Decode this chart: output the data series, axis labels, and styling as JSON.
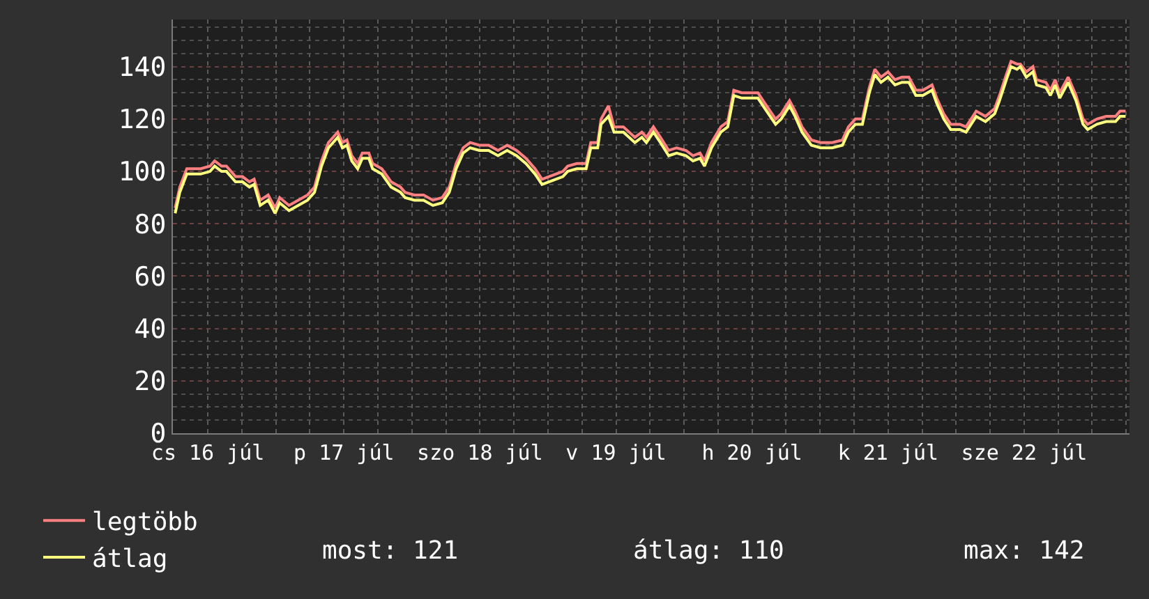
{
  "chart_data": {
    "type": "line",
    "x": [
      "--07-16T06:14",
      "--07-16T07:03",
      "--07-16T08:17",
      "--07-16T09:31",
      "--07-16T10:44",
      "--07-16T12:23",
      "--07-16T13:12",
      "--07-16T14:25",
      "--07-16T15:16",
      "--07-16T16:53",
      "--07-16T18:07",
      "--07-16T19:20",
      "--07-16T20:10",
      "--07-16T21:14",
      "--07-16T22:38",
      "--07-16T23:52",
      "--07-17T00:40",
      "--07-17T02:19",
      "--07-17T03:56",
      "--07-17T05:35",
      "--07-17T06:49",
      "--07-17T08:03",
      "--07-17T09:16",
      "--07-17T10:55",
      "--07-17T11:44",
      "--07-17T12:32",
      "--07-17T13:23",
      "--07-17T14:26",
      "--07-17T15:15",
      "--07-17T16:24",
      "--07-17T17:04",
      "--07-17T18:41",
      "--07-17T20:20",
      "--07-17T21:59",
      "--07-17T22:47",
      "--07-18T00:26",
      "--07-18T02:03",
      "--07-18T03:42",
      "--07-18T05:21",
      "--07-18T06:35",
      "--07-18T07:48",
      "--07-18T09:02",
      "--07-18T10:16",
      "--07-18T11:53",
      "--07-18T13:32",
      "--07-18T15:11",
      "--07-18T16:48",
      "--07-18T18:27",
      "--07-18T20:06",
      "--07-18T21:43",
      "--07-18T22:57",
      "--07-19T00:10",
      "--07-19T02:38",
      "--07-19T03:28",
      "--07-19T05:05",
      "--07-19T06:44",
      "--07-19T07:33",
      "--07-19T08:46",
      "--07-19T09:22",
      "--07-19T10:40",
      "--07-19T11:39",
      "--07-19T13:18",
      "--07-19T15:20",
      "--07-19T16:34",
      "--07-19T17:22",
      "--07-19T18:36",
      "--07-19T19:50",
      "--07-19T21:18",
      "--07-19T22:42",
      "--07-20T00:21",
      "--07-20T01:35",
      "--07-20T02:49",
      "--07-20T03:37",
      "--07-20T04:51",
      "--07-20T06:30",
      "--07-20T07:43",
      "--07-20T08:47",
      "--07-20T10:11",
      "--07-20T11:48",
      "--07-20T13:02",
      "--07-20T14:16",
      "--07-20T16:09",
      "--07-20T17:08",
      "--07-20T18:37",
      "--07-20T19:36",
      "--07-20T20:49",
      "--07-20T22:28",
      "--07-21T00:05",
      "--07-21T02:09",
      "--07-21T03:57",
      "--07-21T05:00",
      "--07-21T06:14",
      "--07-21T07:28",
      "--07-21T08:41",
      "--07-21T09:40",
      "--07-21T10:45",
      "--07-21T11:59",
      "--07-21T13:13",
      "--07-21T14:27",
      "--07-21T15:40",
      "--07-21T16:54",
      "--07-21T18:08",
      "--07-21T19:45",
      "--07-21T20:35",
      "--07-21T21:49",
      "--07-21T23:03",
      "--07-22T00:40",
      "--07-22T01:45",
      "--07-22T03:33",
      "--07-22T05:11",
      "--07-22T06:48",
      "--07-22T07:39",
      "--07-22T08:52",
      "--07-22T09:41",
      "--07-22T10:44",
      "--07-22T11:20",
      "--07-22T12:23",
      "--07-22T13:33",
      "--07-22T14:11",
      "--07-22T15:50",
      "--07-22T16:38",
      "--07-22T17:28",
      "--07-22T18:17",
      "--07-22T19:46",
      "--07-22T21:09",
      "--07-22T22:23",
      "--07-22T23:12",
      "--07-23T00:51",
      "--07-23T02:28",
      "--07-23T04:07",
      "--07-23T04:55",
      "--07-23T05:54"
    ],
    "series": [
      {
        "name": "legtöbb",
        "color": "#ff8080",
        "values": [
          86,
          94,
          101,
          101,
          101,
          102,
          104,
          102,
          102,
          98,
          98,
          96,
          97,
          89,
          91,
          86,
          90,
          87,
          89,
          91,
          94,
          104,
          111,
          115,
          111,
          112,
          106,
          103,
          107,
          107,
          103,
          101,
          96,
          94,
          92,
          91,
          91,
          89,
          90,
          94,
          103,
          109,
          111,
          110,
          110,
          108,
          110,
          108,
          105,
          101,
          97,
          98,
          100,
          102,
          103,
          103,
          111,
          111,
          120,
          125,
          117,
          117,
          113,
          115,
          113,
          117,
          113,
          108,
          109,
          108,
          106,
          107,
          104,
          111,
          117,
          119,
          131,
          130,
          130,
          130,
          126,
          120,
          122,
          127,
          123,
          117,
          112,
          111,
          111,
          112,
          117,
          120,
          120,
          132,
          139,
          136,
          138,
          135,
          136,
          136,
          131,
          131,
          133,
          128,
          122,
          118,
          118,
          117,
          123,
          121,
          124,
          129,
          137,
          142,
          141,
          141,
          138,
          140,
          135,
          134,
          131,
          135,
          130,
          136,
          129,
          120,
          118,
          120,
          121,
          121,
          123,
          123
        ]
      },
      {
        "name": "átlag",
        "color": "#ffff80",
        "values": [
          84,
          92,
          99,
          99,
          99,
          100,
          102,
          100,
          100,
          96,
          96,
          94,
          95,
          87,
          89,
          84,
          88,
          85,
          87,
          89,
          92,
          102,
          109,
          113,
          109,
          110,
          104,
          101,
          105,
          105,
          101,
          99,
          94,
          92,
          90,
          89,
          89,
          87,
          88,
          92,
          101,
          107,
          109,
          108,
          108,
          106,
          108,
          106,
          103,
          99,
          95,
          96,
          98,
          100,
          101,
          101,
          109,
          109,
          118,
          121,
          115,
          115,
          111,
          113,
          111,
          115,
          111,
          106,
          107,
          106,
          104,
          105,
          102,
          109,
          115,
          117,
          129,
          128,
          128,
          128,
          124,
          118,
          120,
          125,
          121,
          115,
          110,
          109,
          109,
          110,
          115,
          118,
          118,
          130,
          137,
          134,
          136,
          133,
          134,
          134,
          129,
          129,
          131,
          126,
          120,
          116,
          116,
          115,
          121,
          119,
          122,
          127,
          135,
          140,
          139,
          140,
          136,
          138,
          133,
          132,
          129,
          133,
          128,
          134,
          127,
          118,
          116,
          118,
          119,
          119,
          121,
          121
        ]
      }
    ],
    "xlim": [
      "--07-16T05:50",
      "--07-23T06:35"
    ],
    "xticks": [
      {
        "value": "--07-16T06:00",
        "label": null
      },
      {
        "value": "--07-16T12:00",
        "label": "cs 16 júl"
      },
      {
        "value": "--07-16T18:00",
        "label": null
      },
      {
        "value": "--07-17T00:00",
        "label": null
      },
      {
        "value": "--07-17T06:00",
        "label": null
      },
      {
        "value": "--07-17T12:00",
        "label": "p 17 júl"
      },
      {
        "value": "--07-17T18:00",
        "label": null
      },
      {
        "value": "--07-18T00:00",
        "label": null
      },
      {
        "value": "--07-18T06:00",
        "label": null
      },
      {
        "value": "--07-18T12:00",
        "label": "szo 18 júl"
      },
      {
        "value": "--07-18T18:00",
        "label": null
      },
      {
        "value": "--07-19T00:00",
        "label": null
      },
      {
        "value": "--07-19T06:00",
        "label": null
      },
      {
        "value": "--07-19T12:00",
        "label": "v 19 júl"
      },
      {
        "value": "--07-19T18:00",
        "label": null
      },
      {
        "value": "--07-20T00:00",
        "label": null
      },
      {
        "value": "--07-20T06:00",
        "label": null
      },
      {
        "value": "--07-20T12:00",
        "label": "h 20 júl"
      },
      {
        "value": "--07-20T18:00",
        "label": null
      },
      {
        "value": "--07-21T00:00",
        "label": null
      },
      {
        "value": "--07-21T06:00",
        "label": null
      },
      {
        "value": "--07-21T12:00",
        "label": "k 21 júl"
      },
      {
        "value": "--07-21T18:00",
        "label": null
      },
      {
        "value": "--07-22T00:00",
        "label": null
      },
      {
        "value": "--07-22T06:00",
        "label": null
      },
      {
        "value": "--07-22T12:00",
        "label": "sze 22 júl"
      },
      {
        "value": "--07-22T18:00",
        "label": null
      },
      {
        "value": "--07-23T00:00",
        "label": null
      },
      {
        "value": "--07-23T06:00",
        "label": null
      }
    ],
    "ylim": [
      0,
      158
    ],
    "yticks": [
      0,
      {
        "value": 5,
        "label": null
      },
      {
        "value": 10,
        "label": null
      },
      {
        "value": 15,
        "label": null
      },
      20,
      {
        "value": 25,
        "label": null
      },
      {
        "value": 30,
        "label": null
      },
      {
        "value": 35,
        "label": null
      },
      40,
      {
        "value": 45,
        "label": null
      },
      {
        "value": 50,
        "label": null
      },
      {
        "value": 55,
        "label": null
      },
      60,
      {
        "value": 65,
        "label": null
      },
      {
        "value": 70,
        "label": null
      },
      {
        "value": 75,
        "label": null
      },
      80,
      {
        "value": 85,
        "label": null
      },
      {
        "value": 90,
        "label": null
      },
      {
        "value": 95,
        "label": null
      },
      100,
      {
        "value": 105,
        "label": null
      },
      {
        "value": 110,
        "label": null
      },
      {
        "value": 115,
        "label": null
      },
      120,
      {
        "value": 125,
        "label": null
      },
      {
        "value": 130,
        "label": null
      },
      {
        "value": 135,
        "label": null
      },
      140,
      {
        "value": 145,
        "label": null
      },
      {
        "value": 150,
        "label": null
      },
      {
        "value": 155,
        "label": null
      }
    ],
    "grid": true,
    "legend": "bottom left",
    "marker": "none",
    "line_style": "solid",
    "annotations": [
      "most: 121",
      "átlag: 110",
      "max: 142"
    ]
  }
}
